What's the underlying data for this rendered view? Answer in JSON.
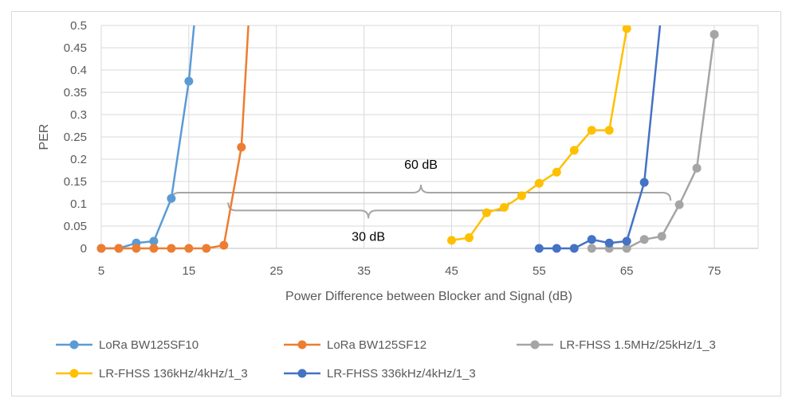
{
  "chart_data": {
    "type": "line",
    "title": "",
    "xlabel": "Power Difference between Blocker and Signal (dB)",
    "ylabel": "PER",
    "xlim": [
      5,
      80
    ],
    "ylim": [
      0,
      0.5
    ],
    "x_ticks": [
      "5",
      "15",
      "25",
      "35",
      "45",
      "55",
      "65",
      "75"
    ],
    "y_ticks": [
      "0",
      "0.05",
      "0.1",
      "0.15",
      "0.2",
      "0.25",
      "0.3",
      "0.35",
      "0.4",
      "0.45",
      "0.5"
    ],
    "grid": "vertical and horizontal",
    "legend_position": "bottom",
    "series": [
      {
        "name": "LoRa BW125SF10",
        "color": "#5b9bd5",
        "points": [
          [
            5,
            0
          ],
          [
            7,
            0
          ],
          [
            9,
            0.012
          ],
          [
            11,
            0.016
          ],
          [
            13,
            0.112
          ],
          [
            15,
            0.375
          ],
          [
            15.6,
            0.5
          ]
        ]
      },
      {
        "name": "LoRa BW125SF12",
        "color": "#ed7d31",
        "points": [
          [
            5,
            0
          ],
          [
            7,
            0
          ],
          [
            9,
            0
          ],
          [
            11,
            0
          ],
          [
            13,
            0
          ],
          [
            15,
            0
          ],
          [
            17,
            0
          ],
          [
            19,
            0.007
          ],
          [
            21,
            0.227
          ],
          [
            21.8,
            0.5
          ]
        ]
      },
      {
        "name": "LR-FHSS 1.5MHz/25kHz/1_3",
        "color": "#a5a5a5",
        "points": [
          [
            61,
            0
          ],
          [
            63,
            0
          ],
          [
            65,
            0
          ],
          [
            67,
            0.02
          ],
          [
            69,
            0.027
          ],
          [
            71,
            0.098
          ],
          [
            73,
            0.18
          ],
          [
            75,
            0.48
          ]
        ]
      },
      {
        "name": "LR-FHSS 136kHz/4kHz/1_3",
        "color": "#ffc000",
        "points": [
          [
            45,
            0.018
          ],
          [
            47,
            0.024
          ],
          [
            49,
            0.08
          ],
          [
            51,
            0.092
          ],
          [
            53,
            0.118
          ],
          [
            55,
            0.146
          ],
          [
            57,
            0.171
          ],
          [
            59,
            0.22
          ],
          [
            61,
            0.265
          ],
          [
            63,
            0.265
          ],
          [
            65,
            0.493
          ]
        ]
      },
      {
        "name": "LR-FHSS 336kHz/4kHz/1_3",
        "color": "#4472c4",
        "points": [
          [
            55,
            0
          ],
          [
            57,
            0
          ],
          [
            59,
            0
          ],
          [
            61,
            0.02
          ],
          [
            63,
            0.012
          ],
          [
            65,
            0.016
          ],
          [
            67,
            0.148
          ],
          [
            68.8,
            0.5
          ]
        ]
      }
    ],
    "annotations": [
      {
        "label": "60 dB",
        "x_start": 13,
        "x_end": 70,
        "y": 0.125
      },
      {
        "label": "30 dB",
        "x_start": 19.5,
        "x_end": 51.5,
        "y": 0.085
      }
    ]
  }
}
